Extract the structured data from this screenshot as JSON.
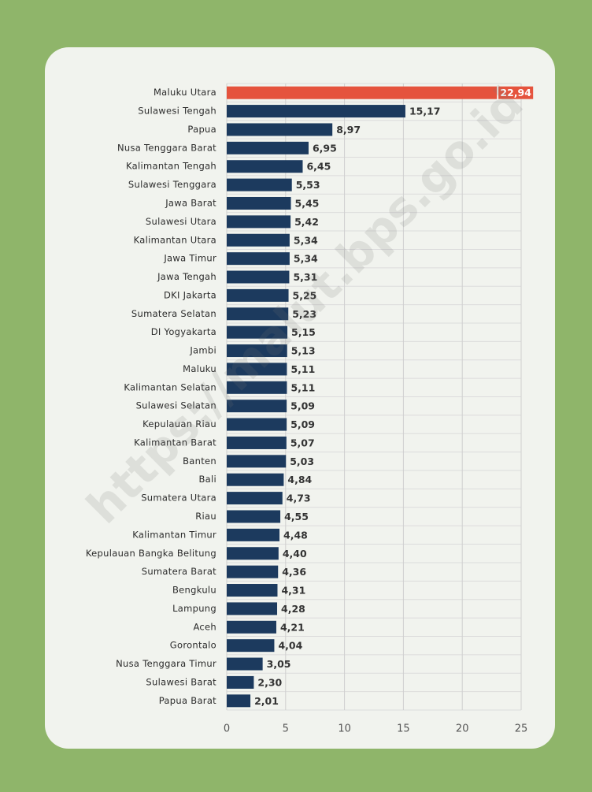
{
  "chart_data": {
    "type": "hbar",
    "watermark": "https://malut.bps.go.id",
    "categories": [
      "Maluku Utara",
      "Sulawesi Tengah",
      "Papua",
      "Nusa Tenggara Barat",
      "Kalimantan Tengah",
      "Sulawesi Tenggara",
      "Jawa Barat",
      "Sulawesi Utara",
      "Kalimantan Utara",
      "Jawa Timur",
      "Jawa Tengah",
      "DKI Jakarta",
      "Sumatera Selatan",
      "DI Yogyakarta",
      "Jambi",
      "Maluku",
      "Kalimantan Selatan",
      "Sulawesi Selatan",
      "Kepulauan Riau",
      "Kalimantan Barat",
      "Banten",
      "Bali",
      "Sumatera Utara",
      "Riau",
      "Kalimantan Timur",
      "Kepulauan Bangka Belitung",
      "Sumatera Barat",
      "Bengkulu",
      "Lampung",
      "Aceh",
      "Gorontalo",
      "Nusa Tenggara Timur",
      "Sulawesi Barat",
      "Papua Barat"
    ],
    "values": [
      22.94,
      15.17,
      8.97,
      6.95,
      6.45,
      5.53,
      5.45,
      5.42,
      5.34,
      5.34,
      5.31,
      5.25,
      5.23,
      5.15,
      5.13,
      5.11,
      5.11,
      5.09,
      5.09,
      5.07,
      5.03,
      4.84,
      4.73,
      4.55,
      4.48,
      4.4,
      4.36,
      4.31,
      4.28,
      4.21,
      4.04,
      3.05,
      2.3,
      2.01
    ],
    "value_labels": [
      "22,94",
      "15,17",
      "8,97",
      "6,95",
      "6,45",
      "5,53",
      "5,45",
      "5,42",
      "5,34",
      "5,34",
      "5,31",
      "5,25",
      "5,23",
      "5,15",
      "5,13",
      "5,11",
      "5,11",
      "5,09",
      "5,09",
      "5,07",
      "5,03",
      "4,84",
      "4,73",
      "4,55",
      "4,48",
      "4,40",
      "4,36",
      "4,31",
      "4,28",
      "4,21",
      "4,04",
      "3,05",
      "2,30",
      "2,01"
    ],
    "bar_colors": [
      "#e5533d",
      "#1c3a5e",
      "#1c3a5e",
      "#1c3a5e",
      "#1c3a5e",
      "#1c3a5e",
      "#1c3a5e",
      "#1c3a5e",
      "#1c3a5e",
      "#1c3a5e",
      "#1c3a5e",
      "#1c3a5e",
      "#1c3a5e",
      "#1c3a5e",
      "#1c3a5e",
      "#1c3a5e",
      "#1c3a5e",
      "#1c3a5e",
      "#1c3a5e",
      "#1c3a5e",
      "#1c3a5e",
      "#1c3a5e",
      "#1c3a5e",
      "#1c3a5e",
      "#1c3a5e",
      "#1c3a5e",
      "#1c3a5e",
      "#1c3a5e",
      "#1c3a5e",
      "#1c3a5e",
      "#1c3a5e",
      "#1c3a5e",
      "#1c3a5e",
      "#1c3a5e"
    ],
    "xlim": [
      0,
      25
    ],
    "xticks": [
      0,
      5,
      10,
      15,
      20,
      25
    ],
    "grid": true
  }
}
